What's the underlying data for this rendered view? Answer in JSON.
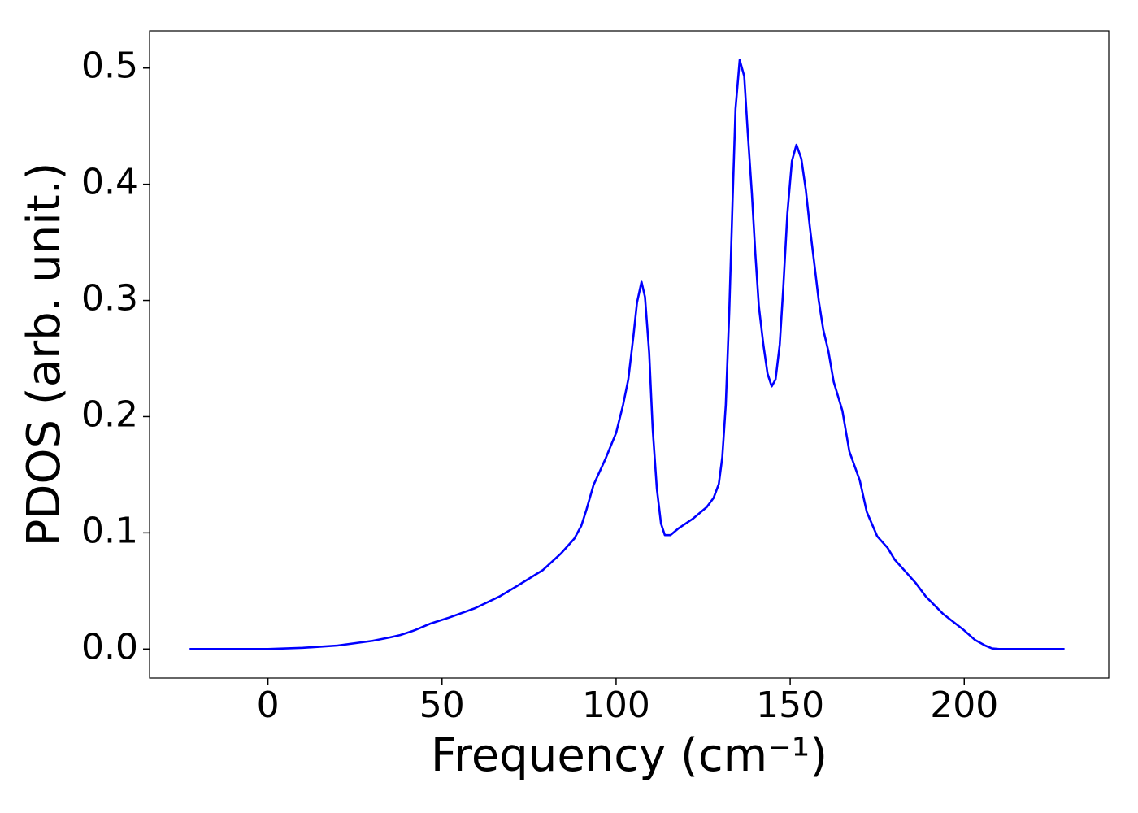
{
  "chart_data": {
    "type": "line",
    "xlabel": "Frequency (cm⁻¹)",
    "ylabel": "PDOS (arb. unit.)",
    "color": "#0000ff",
    "x": [
      -22.5,
      0,
      5,
      10,
      15,
      20,
      25,
      30,
      35,
      38,
      42,
      46.8,
      52,
      59.4,
      66.4,
      72,
      79,
      84.1,
      88,
      90,
      91.5,
      93.5,
      97,
      100,
      102,
      103.5,
      105,
      106,
      107.3,
      108.3,
      109.5,
      110.5,
      111.7,
      112.9,
      114,
      115.6,
      118,
      122,
      126,
      128,
      129.5,
      130.5,
      131.5,
      132.5,
      133.5,
      134.3,
      135.5,
      136.8,
      137.8,
      139,
      140,
      141,
      142.3,
      143.5,
      144.7,
      145.8,
      147,
      148,
      149.2,
      150.5,
      151.8,
      153.2,
      154.5,
      155.7,
      157,
      158.2,
      159.5,
      161,
      162.5,
      165,
      167,
      170,
      172,
      175,
      178,
      180,
      183,
      186,
      189,
      192,
      194,
      197,
      200,
      203,
      206,
      208,
      210,
      212,
      228.8
    ],
    "values": [
      0,
      0,
      0.0005,
      0.001,
      0.002,
      0.003,
      0.005,
      0.007,
      0.01,
      0.012,
      0.016,
      0.022,
      0.027,
      0.035,
      0.045,
      0.055,
      0.068,
      0.082,
      0.095,
      0.106,
      0.12,
      0.141,
      0.164,
      0.186,
      0.21,
      0.232,
      0.27,
      0.298,
      0.316,
      0.303,
      0.255,
      0.19,
      0.138,
      0.108,
      0.098,
      0.098,
      0.104,
      0.112,
      0.122,
      0.13,
      0.142,
      0.165,
      0.21,
      0.29,
      0.39,
      0.465,
      0.507,
      0.493,
      0.445,
      0.392,
      0.34,
      0.295,
      0.262,
      0.237,
      0.226,
      0.232,
      0.262,
      0.31,
      0.375,
      0.42,
      0.434,
      0.422,
      0.395,
      0.362,
      0.33,
      0.3,
      0.275,
      0.256,
      0.23,
      0.205,
      0.17,
      0.145,
      0.118,
      0.097,
      0.087,
      0.077,
      0.067,
      0.057,
      0.045,
      0.036,
      0.03,
      0.023,
      0.016,
      0.008,
      0.003,
      0.0005,
      0,
      0,
      0
    ],
    "xlim": [
      -34,
      241.5
    ],
    "ylim": [
      -0.025,
      0.532
    ],
    "xticks": [
      0,
      50,
      100,
      150,
      200
    ],
    "yticks": [
      {
        "value": 0,
        "label": "0.0"
      },
      0.1,
      0.2,
      0.3,
      0.4,
      0.5
    ]
  }
}
